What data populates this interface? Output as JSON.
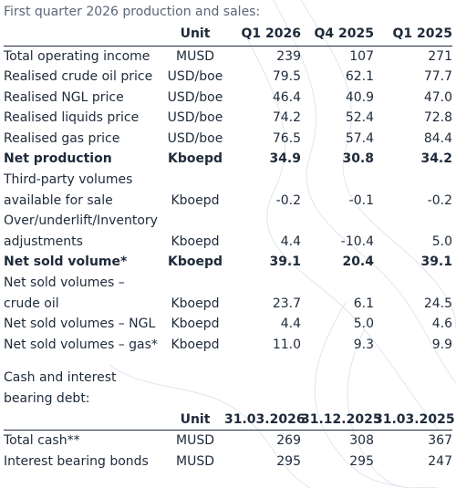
{
  "heading": "First quarter 2026 production and sales:",
  "table1": {
    "headers": [
      "",
      "Unit",
      "Q1 2026",
      "Q4 2025",
      "Q1 2025"
    ],
    "rows": [
      {
        "label": "Total operating income",
        "unit": "MUSD",
        "v1": "239",
        "v2": "107",
        "v3": "271"
      },
      {
        "label": "Realised crude oil price",
        "unit": "USD/boe",
        "v1": "79.5",
        "v2": "62.1",
        "v3": "77.7"
      },
      {
        "label": "Realised NGL price",
        "unit": "USD/boe",
        "v1": "46.4",
        "v2": "40.9",
        "v3": "47.0"
      },
      {
        "label": "Realised liquids price",
        "unit": "USD/boe",
        "v1": "74.2",
        "v2": "52.4",
        "v3": "72.8"
      },
      {
        "label": "Realised gas price",
        "unit": "USD/boe",
        "v1": "76.5",
        "v2": "57.4",
        "v3": "84.4"
      },
      {
        "label": "Net production",
        "unit": "Kboepd",
        "v1": "34.9",
        "v2": "30.8",
        "v3": "34.2"
      },
      {
        "label": "Third-party volumes",
        "unit": "",
        "v1": "",
        "v2": "",
        "v3": ""
      },
      {
        "label": "available for sale",
        "unit": "Kboepd",
        "v1": "-0.2",
        "v2": "-0.1",
        "v3": "-0.2"
      },
      {
        "label": "Over/underlift/Inventory",
        "unit": "",
        "v1": "",
        "v2": "",
        "v3": ""
      },
      {
        "label": "adjustments",
        "unit": "Kboepd",
        "v1": "4.4",
        "v2": "-10.4",
        "v3": "5.0"
      },
      {
        "label": "Net sold volume*",
        "unit": "Kboepd",
        "v1": "39.1",
        "v2": "20.4",
        "v3": "39.1"
      },
      {
        "label": "Net sold volumes –",
        "unit": "",
        "v1": "",
        "v2": "",
        "v3": ""
      },
      {
        "label": "crude oil",
        "unit": "Kboepd",
        "v1": "23.7",
        "v2": "6.1",
        "v3": "24.5"
      },
      {
        "label": "Net sold volumes – NGL",
        "unit": "Kboepd",
        "v1": "4.4",
        "v2": "5.0",
        "v3": "4.6"
      },
      {
        "label": "Net sold volumes – gas*",
        "unit": "Kboepd",
        "v1": "11.0",
        "v2": "9.3",
        "v3": "9.9"
      }
    ]
  },
  "section2": {
    "title_line1": "Cash and interest",
    "title_line2": "bearing debt:"
  },
  "table2": {
    "headers": [
      "",
      "Unit",
      "31.03.2026",
      "31.12.2025",
      "31.03.2025"
    ],
    "rows": [
      {
        "label": "Total cash**",
        "unit": "MUSD",
        "v1": "269",
        "v2": "308",
        "v3": "367"
      },
      {
        "label": "Interest bearing bonds",
        "unit": "MUSD",
        "v1": "295",
        "v2": "295",
        "v3": "247"
      }
    ]
  }
}
